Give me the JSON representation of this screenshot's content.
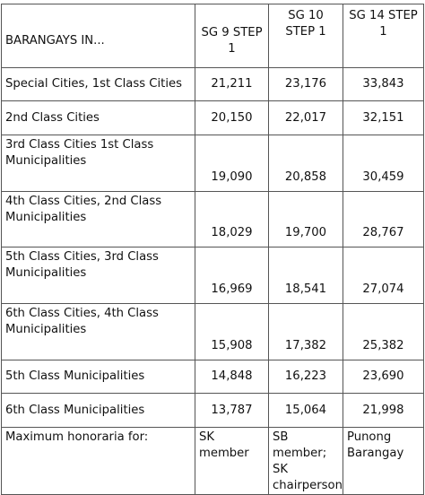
{
  "table": {
    "headers": [
      "BARANGAYS IN...",
      "SG 9 STEP 1",
      "SG 10 STEP 1",
      "SG 14 STEP 1"
    ],
    "rows": [
      [
        "Special Cities, 1st Class Cities",
        "21,211",
        "23,176",
        "33,843"
      ],
      [
        "2nd Class Cities",
        "20,150",
        "22,017",
        "32,151"
      ],
      [
        "3rd Class Cities 1st Class Municipalities",
        "19,090",
        "20,858",
        "30,459"
      ],
      [
        "4th Class Cities, 2nd Class Municipalities",
        "18,029",
        "19,700",
        "28,767"
      ],
      [
        "5th Class Cities, 3rd Class Municipalities",
        "16,969",
        "18,541",
        "27,074"
      ],
      [
        "6th Class Cities, 4th Class Municipalities",
        "15,908",
        "17,382",
        "25,382"
      ],
      [
        "5th Class Municipalities",
        "14,848",
        "16,223",
        "23,690"
      ],
      [
        "6th Class Municipalities",
        "13,787",
        "15,064",
        "21,998"
      ],
      [
        "Maximum honoraria for:",
        "SK member",
        "SB member; SK chairperson",
        "Punong Barangay"
      ]
    ]
  }
}
